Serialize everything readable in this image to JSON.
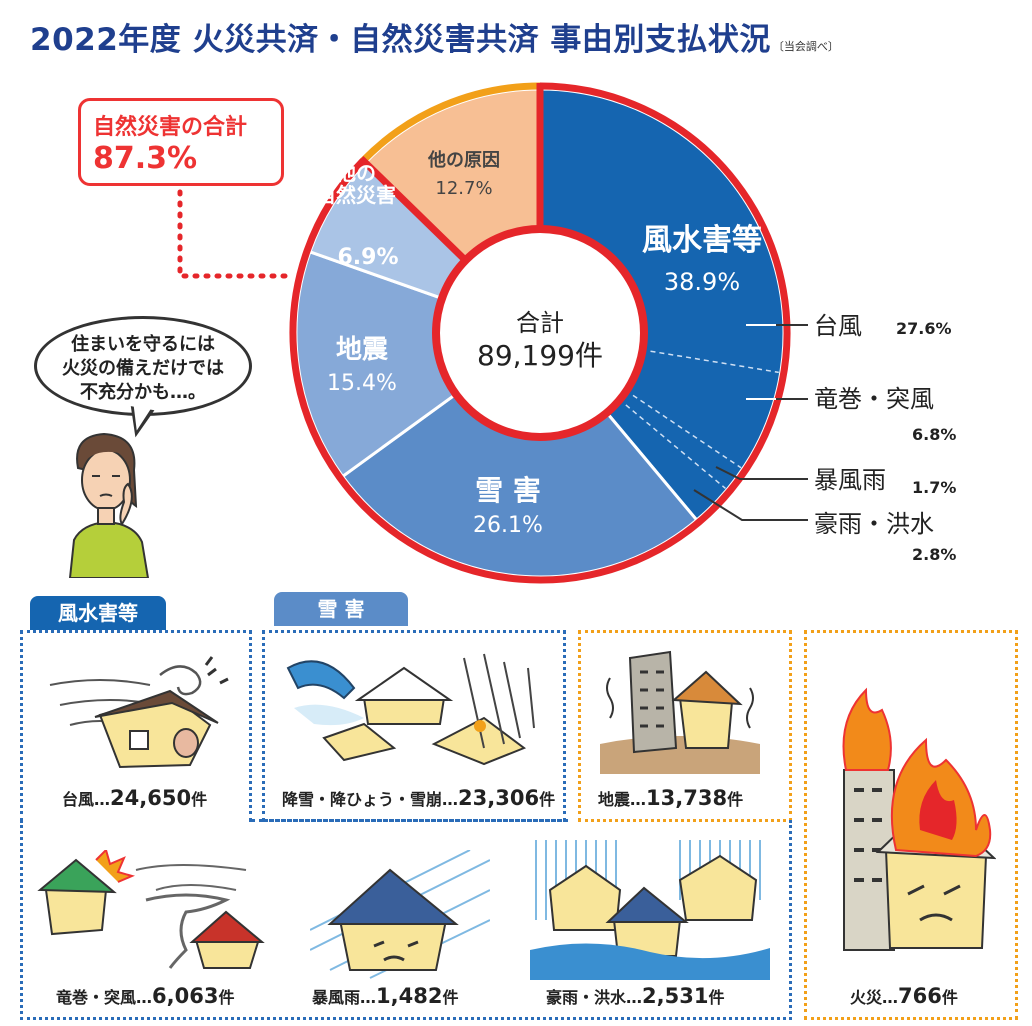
{
  "header": {
    "title": "2022年度 火災共済・自然災害共済 事由別支払状況",
    "note": "〔当会調べ〕"
  },
  "callout": {
    "label": "自然災害の合計",
    "value": "87.3%"
  },
  "speech_bubble": {
    "lines": [
      "住まいを守るには",
      "火災の備えだけでは",
      "不充分かも…。"
    ]
  },
  "colors": {
    "navy_title": "#1f3f8e",
    "fusuigai": "#1565b0",
    "snow": "#5b8cc8",
    "earthquake": "#86a9d8",
    "other_natural": "#aac4e6",
    "other_cause": "#f7bf94",
    "natural_ring": "#e5262a",
    "other_ring": "#f2a019",
    "dotted_orange": "#f2a019",
    "dotted_blue": "#2a6cb8"
  },
  "chart_data": {
    "type": "pie",
    "donut": true,
    "center_label": "合計",
    "center_value": "89,199件",
    "slices": [
      {
        "label": "風水害等",
        "value": 38.9,
        "pct": "38.9%"
      },
      {
        "label": "雪 害",
        "value": 26.1,
        "pct": "26.1%"
      },
      {
        "label": "地震",
        "value": 15.4,
        "pct": "15.4%"
      },
      {
        "label": "他の自然災害",
        "label_lines": [
          "他の",
          "自然災害"
        ],
        "value": 6.9,
        "pct": "6.9%"
      },
      {
        "label": "他の原因",
        "value": 12.7,
        "pct": "12.7%"
      }
    ],
    "breakdown_of": "風水害等",
    "breakdown": [
      {
        "label": "台風",
        "value": 27.6,
        "pct": "27.6%"
      },
      {
        "label": "竜巻・突風",
        "value": 6.8,
        "pct": "6.8%"
      },
      {
        "label": "暴風雨",
        "value": 1.7,
        "pct": "1.7%"
      },
      {
        "label": "豪雨・洪水",
        "value": 2.8,
        "pct": "2.8%"
      }
    ]
  },
  "panels": {
    "tab_fusuigai": "風水害等",
    "tab_snow": "雪 害",
    "items": [
      {
        "label": "台風…",
        "count": "24,650",
        "unit": "件"
      },
      {
        "label": "降雪・降ひょう・雪崩…",
        "count": "23,306",
        "unit": "件"
      },
      {
        "label": "地震…",
        "count": "13,738",
        "unit": "件"
      },
      {
        "label": "火災…",
        "count": "766",
        "unit": "件"
      },
      {
        "label": "竜巻・突風…",
        "count": "6,063",
        "unit": "件"
      },
      {
        "label": "暴風雨…",
        "count": "1,482",
        "unit": "件"
      },
      {
        "label": "豪雨・洪水…",
        "count": "2,531",
        "unit": "件"
      }
    ]
  }
}
